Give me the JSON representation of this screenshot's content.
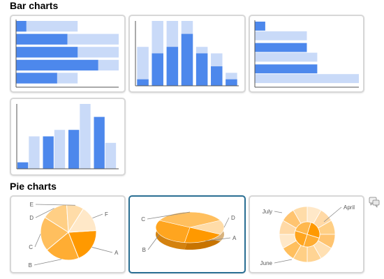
{
  "sections": {
    "bar_title": "Bar charts",
    "pie_title": "Pie charts"
  },
  "colors": {
    "dark_blue": "#4d88ec",
    "light_blue": "#c9daf8",
    "axis": "#555555",
    "pie_oranges": [
      "#ff9900",
      "#ffad33",
      "#ffbf5e",
      "#ffcf85",
      "#ffdca8",
      "#ffe8c8"
    ],
    "selected_border": "#2a6f93"
  },
  "chart_data": [
    {
      "type": "bar",
      "orientation": "horizontal",
      "stacked": true,
      "series": [
        {
          "values": [
            1,
            5,
            6,
            8,
            4
          ]
        },
        {
          "values": [
            6,
            10,
            10,
            10,
            6
          ]
        }
      ]
    },
    {
      "type": "bar",
      "orientation": "vertical",
      "stacked": true,
      "series": [
        {
          "values": [
            1,
            5,
            6,
            8,
            5,
            3,
            1
          ]
        },
        {
          "values": [
            6,
            10,
            10,
            10,
            6,
            5,
            2
          ]
        }
      ]
    },
    {
      "type": "bar",
      "orientation": "horizontal",
      "grouped": true,
      "series": [
        {
          "values": [
            1,
            5,
            6
          ]
        },
        {
          "values": [
            5,
            6,
            10
          ]
        }
      ]
    },
    {
      "type": "bar",
      "orientation": "vertical",
      "grouped": true,
      "series": [
        {
          "values": [
            1,
            5,
            6,
            8
          ]
        },
        {
          "values": [
            5,
            6,
            10,
            4
          ]
        }
      ]
    },
    {
      "type": "pie",
      "style": "2d",
      "labels": [
        "A",
        "B",
        "C",
        "D",
        "E",
        "F"
      ],
      "values": [
        20,
        20,
        20,
        15,
        10,
        15
      ]
    },
    {
      "type": "pie",
      "style": "3d",
      "labels": [
        "A",
        "B",
        "C",
        "D"
      ],
      "values": [
        20,
        30,
        35,
        15
      ]
    },
    {
      "type": "pie",
      "style": "concentric",
      "outer_labels": [
        "July",
        "April",
        "June"
      ],
      "outer_values": [
        1,
        1,
        1,
        1,
        1,
        1,
        1,
        1,
        1,
        1,
        1,
        1
      ],
      "inner_values": [
        1,
        1,
        1,
        1
      ]
    }
  ]
}
